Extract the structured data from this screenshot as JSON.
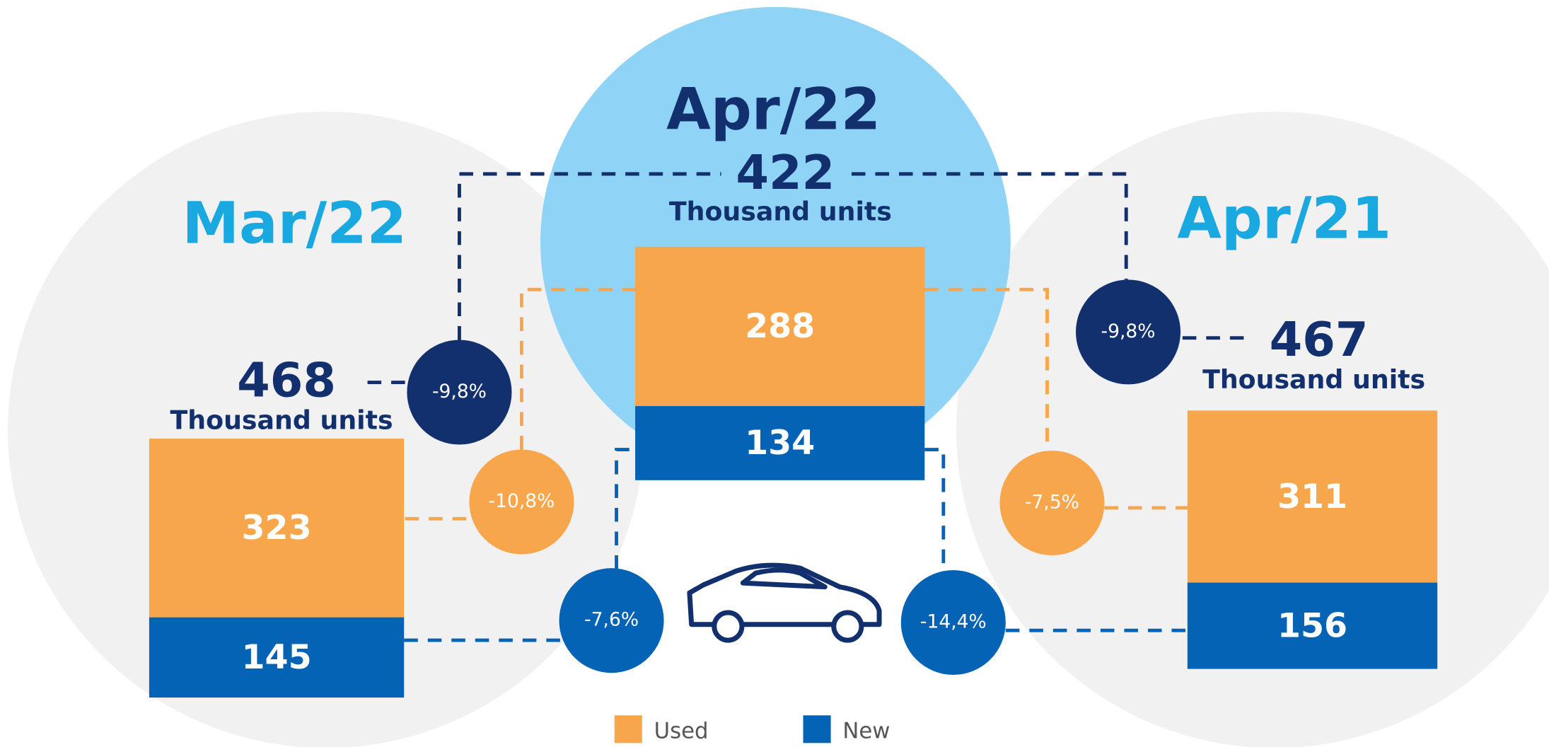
{
  "panels": [
    {
      "period": "Mar/22",
      "total": 468,
      "unit": "Thousand units",
      "used": 323,
      "new": 145
    },
    {
      "period": "Apr/22",
      "total": 422,
      "unit": "Thousand units",
      "used": 288,
      "new": 134
    },
    {
      "period": "Apr/21",
      "total": 467,
      "unit": "Thousand units",
      "used": 311,
      "new": 156
    }
  ],
  "changes": {
    "total_vs_mar": {
      "value": -9.8,
      "label": "-9,8%"
    },
    "total_vs_apr21": {
      "value": -9.8,
      "label": "-9,8%"
    },
    "used_vs_mar": {
      "value": -10.8,
      "label": "-10,8%"
    },
    "used_vs_apr21": {
      "value": -7.5,
      "label": "-7,5%"
    },
    "new_vs_mar": {
      "value": -7.6,
      "label": "-7,6%"
    },
    "new_vs_apr21": {
      "value": -14.4,
      "label": "-14,4%"
    }
  },
  "legend": {
    "used": "Used",
    "new": "New"
  }
}
